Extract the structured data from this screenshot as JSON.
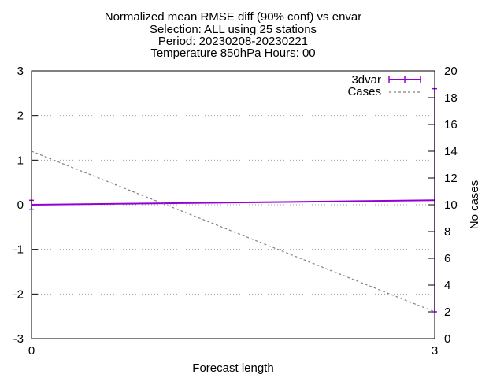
{
  "chart_data": {
    "type": "line",
    "title_lines": [
      "Normalized mean RMSE diff (90% conf) vs envar",
      "Selection: ALL using    25 stations",
      "Period: 20230208-20230221",
      "Temperature 850hPa   Hours: 00"
    ],
    "xlabel": "Forecast length",
    "ylabel": "",
    "y2label": "No cases",
    "xlim": [
      0,
      3
    ],
    "ylim": [
      -3,
      3
    ],
    "y2lim": [
      0,
      20
    ],
    "x_ticks": [
      "0",
      "3"
    ],
    "y_ticks": [
      "-3",
      "-2",
      "-1",
      "0",
      "1",
      "2",
      "3"
    ],
    "y2_ticks": [
      "0",
      "2",
      "4",
      "6",
      "8",
      "10",
      "12",
      "14",
      "16",
      "18",
      "20"
    ],
    "grid": "horizontal dotted",
    "legend_position": "top-right",
    "series": [
      {
        "name": "3dvar",
        "axis": "y",
        "color": "#9400d3",
        "style": "solid with errorbars",
        "x": [
          0,
          3
        ],
        "y": [
          0.0,
          0.1
        ],
        "error_low": [
          -0.1,
          -2.4
        ],
        "error_high": [
          0.1,
          2.6
        ]
      },
      {
        "name": "Cases",
        "axis": "y2",
        "color": "#808080",
        "style": "dashed",
        "x": [
          0,
          3
        ],
        "y": [
          14,
          2
        ]
      }
    ]
  }
}
